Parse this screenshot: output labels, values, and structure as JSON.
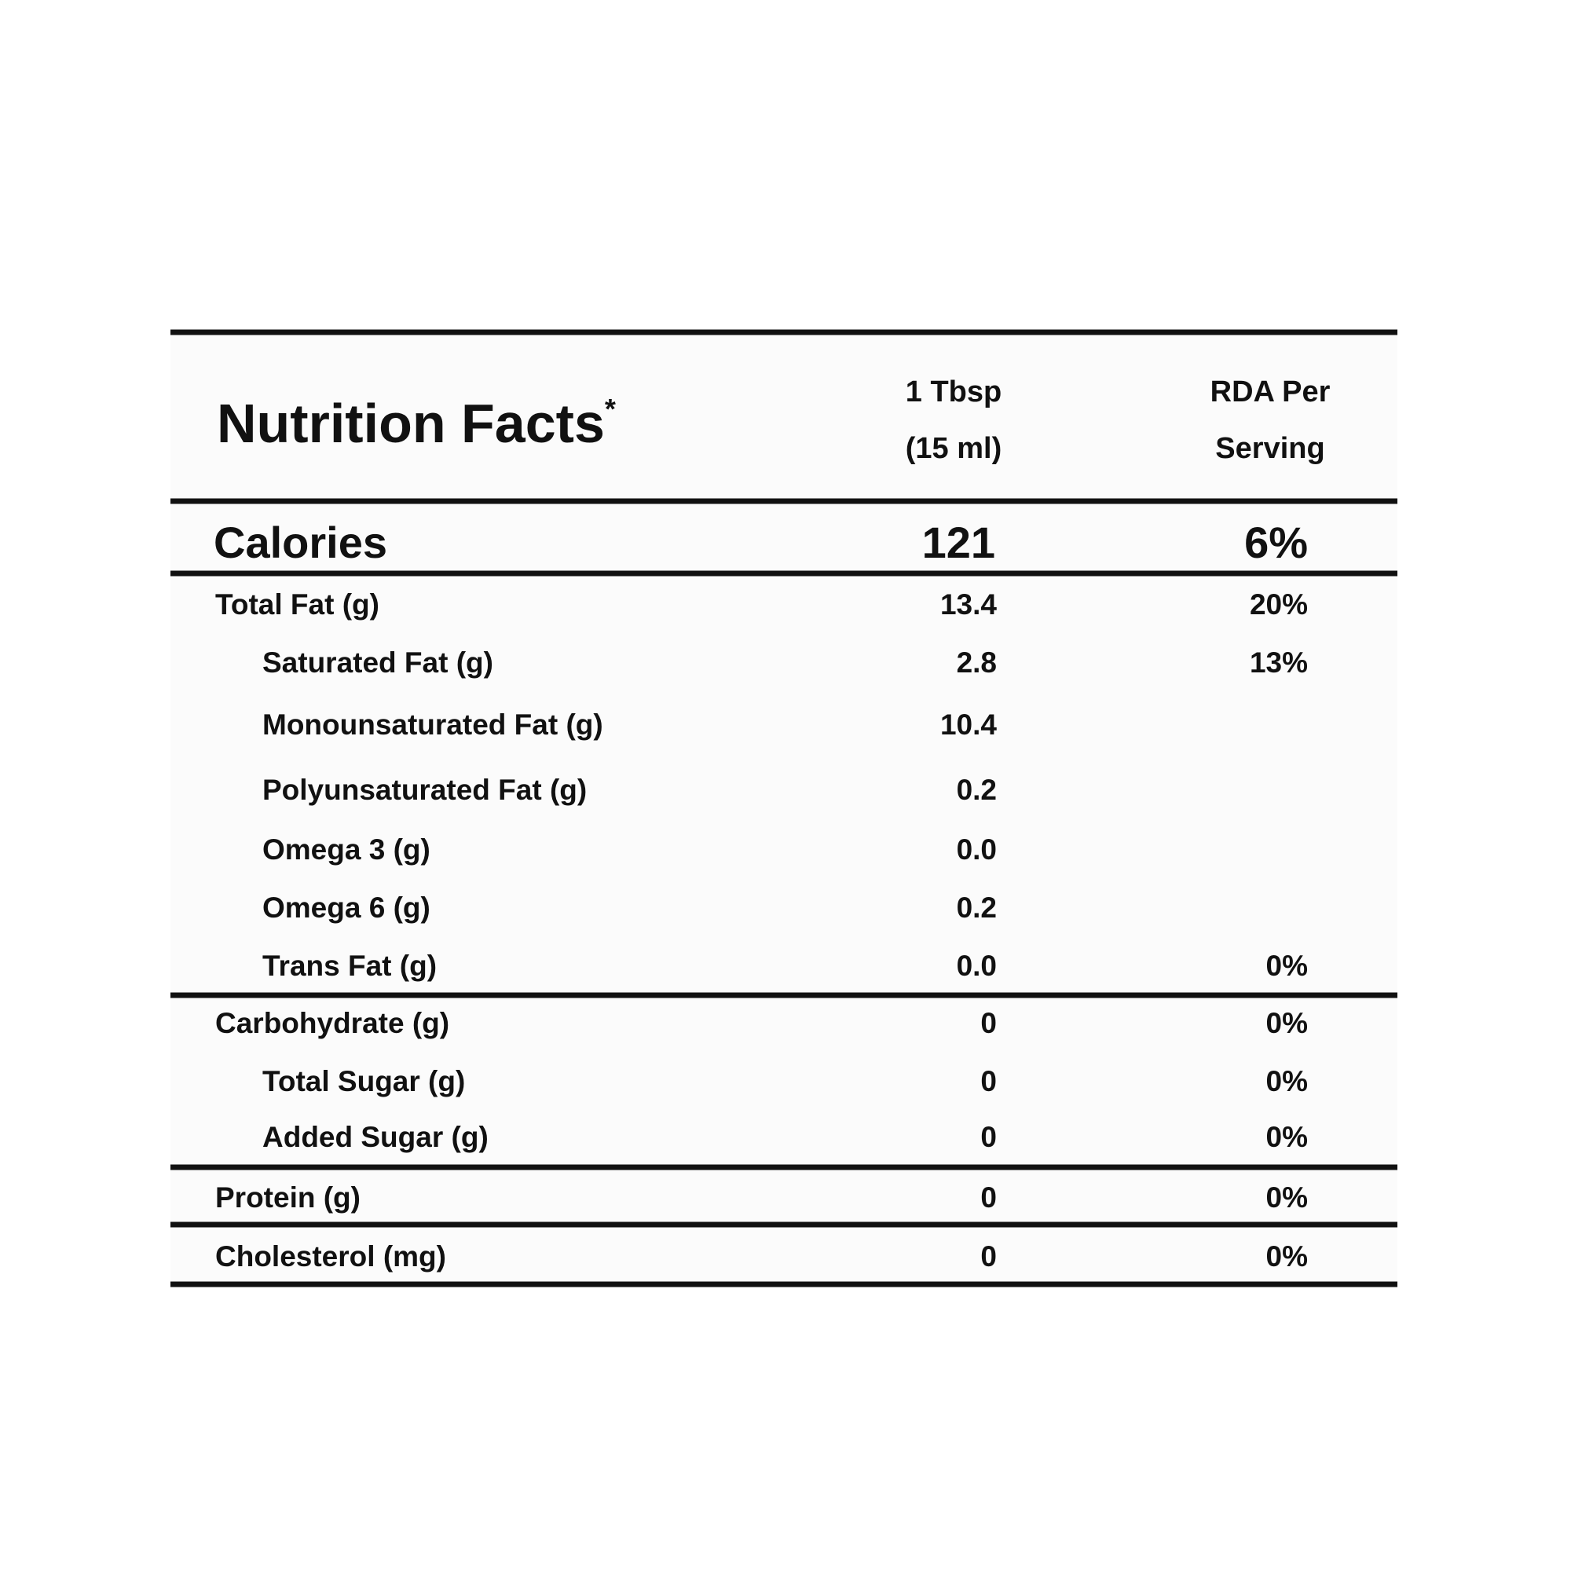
{
  "title": "Nutrition Facts",
  "title_mark": "*",
  "columns": [
    [
      "1 Tbsp",
      "(15 ml)"
    ],
    [
      "RDA Per",
      "Serving"
    ]
  ],
  "calories": {
    "label": "Calories",
    "amount": "121",
    "rda": "6%"
  },
  "rows": [
    {
      "label": "Total Fat (g)",
      "amount": "13.4",
      "rda": "20%",
      "indent": false
    },
    {
      "label": "Saturated Fat (g)",
      "amount": "2.8",
      "rda": "13%",
      "indent": true
    },
    {
      "label": "Monounsaturated Fat (g)",
      "amount": "10.4",
      "indent": true
    },
    {
      "label": "Polyunsaturated Fat (g)",
      "amount": "0.2",
      "indent": true
    },
    {
      "label": "Omega 3 (g)",
      "amount": "0.0",
      "indent": true
    },
    {
      "label": "Omega 6 (g)",
      "amount": "0.2",
      "indent": true
    },
    {
      "label": "Trans Fat (g)",
      "amount": "0.0",
      "rda": "0%",
      "indent": true
    },
    {
      "label": "Carbohydrate (g)",
      "amount": "0",
      "rda": "0%",
      "indent": false
    },
    {
      "label": "Total Sugar (g)",
      "amount": "0",
      "rda": "0%",
      "indent": true
    },
    {
      "label": "Added Sugar (g)",
      "amount": "0",
      "rda": "0%",
      "indent": true
    },
    {
      "label": "Protein (g)",
      "amount": "0",
      "rda": "0%",
      "indent": false
    },
    {
      "label": "Cholesterol (mg)",
      "amount": "0",
      "rda": "0%",
      "indent": false
    }
  ]
}
